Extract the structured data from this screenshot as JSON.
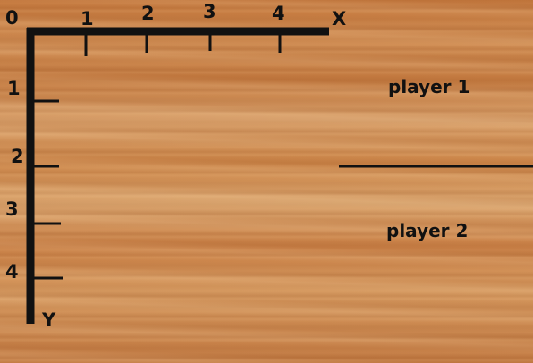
{
  "origin_label": "0",
  "x_axis": {
    "label": "X",
    "ticks": [
      "1",
      "2",
      "3",
      "4"
    ]
  },
  "y_axis": {
    "label": "Y",
    "ticks": [
      "1",
      "2",
      "3",
      "4"
    ]
  },
  "player_areas": [
    {
      "label": "player 1"
    },
    {
      "label": "player 2"
    }
  ],
  "colors": {
    "ink": "#111111",
    "wood": "#c98a4e"
  }
}
